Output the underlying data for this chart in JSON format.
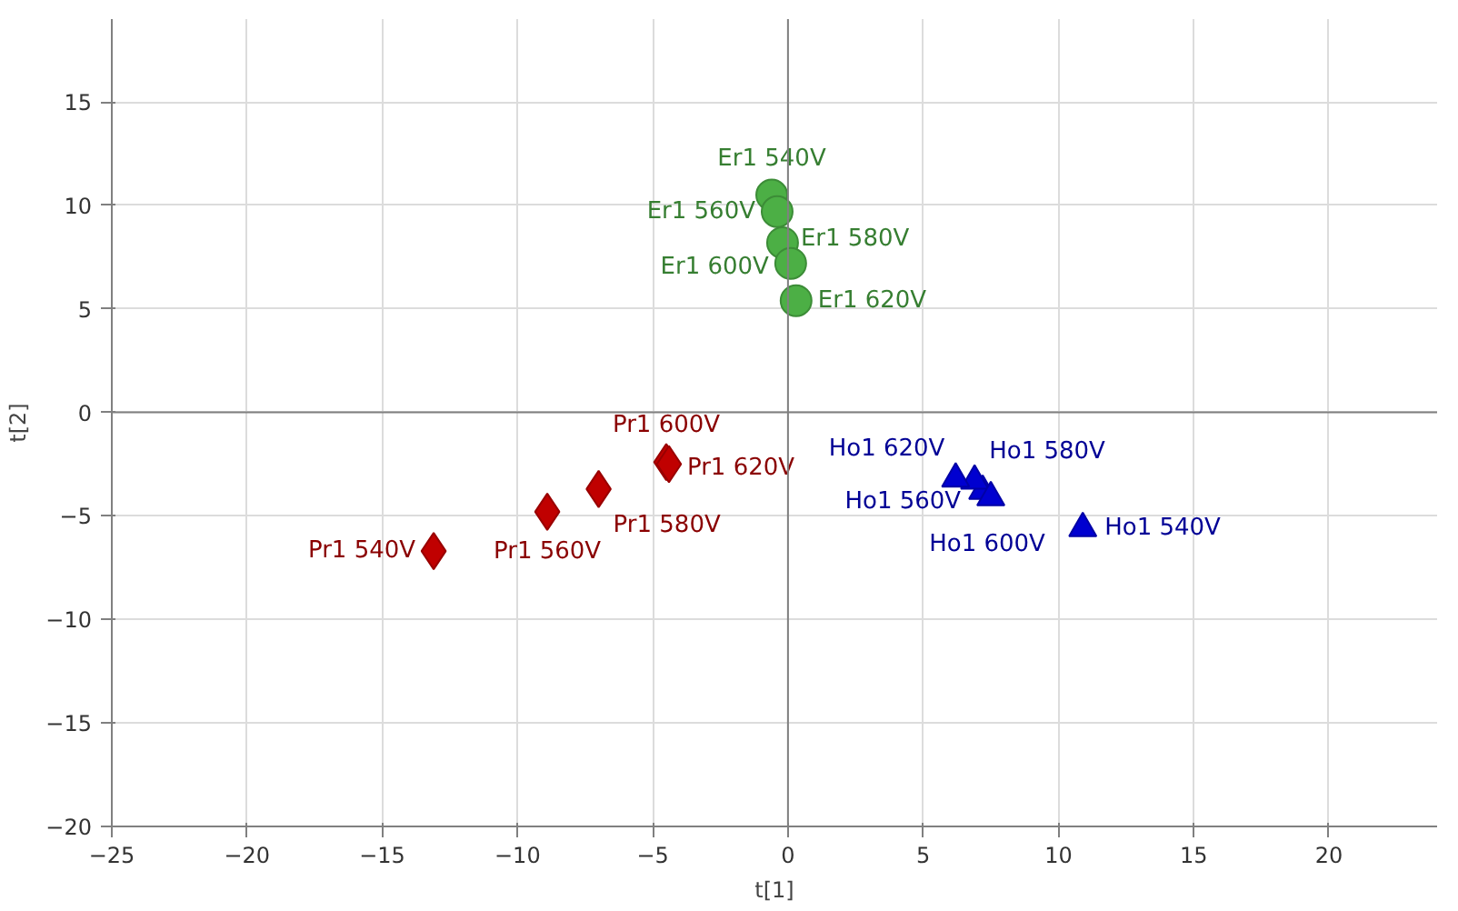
{
  "chart_data": {
    "type": "scatter",
    "xlabel": "t[1]",
    "ylabel": "t[2]",
    "xlim": [
      -25,
      24
    ],
    "ylim": [
      -20,
      19
    ],
    "xticks": [
      -25,
      -20,
      -15,
      -10,
      -5,
      0,
      5,
      10,
      15,
      20
    ],
    "yticks": [
      -20,
      -15,
      -10,
      -5,
      0,
      5,
      10,
      15
    ],
    "grid": true,
    "series": [
      {
        "color": "#4caf45",
        "marker": "circle",
        "x": [
          -0.6,
          -0.4,
          -0.2,
          0.1,
          0.3
        ],
        "values": [
          10.5,
          9.7,
          8.2,
          7.2,
          5.4
        ],
        "value_labels": [
          "Er1 540V",
          "Er1 560V",
          "Er1 580V",
          "Er1 600V",
          "Er1 620V"
        ]
      },
      {
        "color": "#c00000",
        "marker": "diamond",
        "x": [
          -13.1,
          -8.9,
          -7.0,
          -4.5,
          -4.4
        ],
        "values": [
          -6.7,
          -4.8,
          -3.7,
          -2.4,
          -2.5
        ],
        "value_labels": [
          "Pr1 540V",
          "Pr1 560V",
          "Pr1 580V",
          "Pr1 600V",
          "Pr1 620V"
        ]
      },
      {
        "color": "#0000d0",
        "marker": "triangle",
        "x": [
          10.9,
          7.2,
          6.9,
          7.5,
          6.2
        ],
        "values": [
          -5.6,
          -3.8,
          -3.3,
          -4.1,
          -3.2
        ],
        "value_labels": [
          "Ho1 540V",
          "Ho1 560V",
          "Ho1 580V",
          "Ho1 600V",
          "Ho1 620V"
        ]
      }
    ]
  }
}
